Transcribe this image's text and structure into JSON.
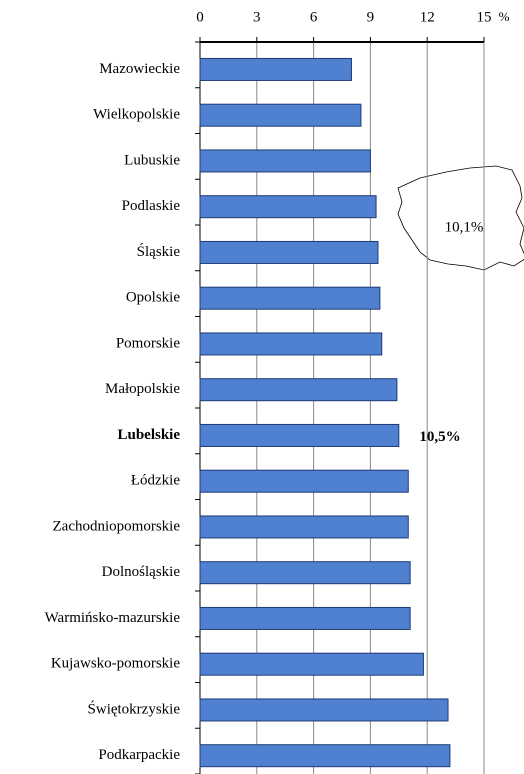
{
  "chart_data": {
    "type": "bar",
    "orientation": "horizontal",
    "categories": [
      "Mazowieckie",
      "Wielkopolskie",
      "Lubuskie",
      "Podlaskie",
      "Śląskie",
      "Opolskie",
      "Pomorskie",
      "Małopolskie",
      "Lubelskie",
      "Łódzkie",
      "Zachodniopomorskie",
      "Dolnośląskie",
      "Warmińsko-mazurskie",
      "Kujawsko-pomorskie",
      "Świętokrzyskie",
      "Podkarpackie"
    ],
    "values": [
      8.0,
      8.5,
      9.0,
      9.3,
      9.4,
      9.5,
      9.6,
      10.4,
      10.5,
      11.0,
      11.0,
      11.1,
      11.1,
      11.8,
      13.1,
      13.2
    ],
    "color": "#4f81d0",
    "xlabel": "%",
    "xlim": [
      0,
      15
    ],
    "xticks": [
      0,
      3,
      6,
      9,
      12,
      15
    ],
    "grid": true,
    "highlight_index": 8,
    "annotations": [
      "10,5%",
      "10,1%"
    ]
  }
}
